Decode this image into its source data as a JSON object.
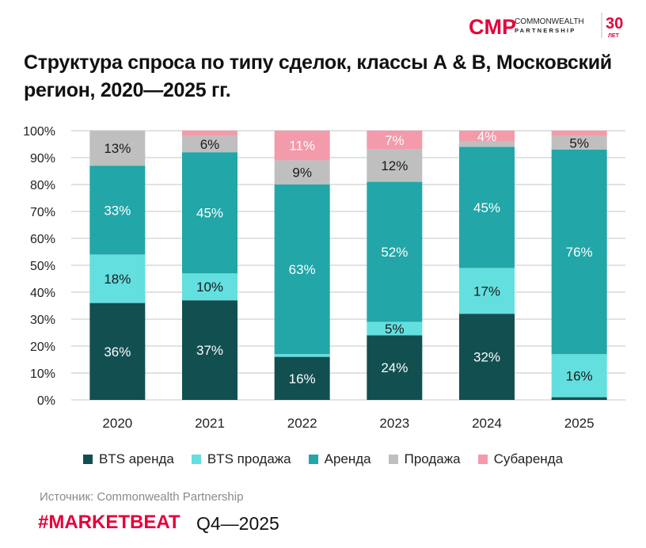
{
  "title": "Структура спроса по типу сделок, классы А & В, Московский регион, 2020—2025 гг.",
  "logo": {
    "text_main": "CMP",
    "line1": "COMMONWEALTH",
    "line2": "PARTNERSHIP",
    "years": "30",
    "years_label": "ЛЕТ",
    "color": "#e4003b"
  },
  "footer": {
    "source": "Источник: Commonwealth Partnership",
    "brand": "#MARKETBEAT",
    "period": "Q4—2025"
  },
  "chart_data": {
    "type": "bar",
    "stacked": true,
    "title": "",
    "xlabel": "",
    "ylabel": "",
    "ylim": [
      0,
      100
    ],
    "yticks": [
      "0%",
      "10%",
      "20%",
      "30%",
      "40%",
      "50%",
      "60%",
      "70%",
      "80%",
      "90%",
      "100%"
    ],
    "grid": true,
    "legend_position": "bottom",
    "categories": [
      "2020",
      "2021",
      "2022",
      "2023",
      "2024",
      "2025"
    ],
    "series": [
      {
        "name": "BTS аренда",
        "color": "#124f51",
        "label_color": "#ffffff",
        "values": [
          36,
          37,
          16,
          24,
          32,
          1
        ],
        "labels": [
          "36%",
          "37%",
          "16%",
          "24%",
          "32%",
          null
        ]
      },
      {
        "name": "BTS продажа",
        "color": "#63dfdf",
        "label_color": "#1a1a1a",
        "values": [
          18,
          10,
          1,
          5,
          17,
          16
        ],
        "labels": [
          "18%",
          "10%",
          null,
          "5%",
          "17%",
          "16%"
        ]
      },
      {
        "name": "Аренда",
        "color": "#22a6a8",
        "label_color": "#ffffff",
        "values": [
          33,
          45,
          63,
          52,
          45,
          76
        ],
        "labels": [
          "33%",
          "45%",
          "63%",
          "52%",
          "45%",
          "76%"
        ]
      },
      {
        "name": "Продажа",
        "color": "#bfbfbf",
        "label_color": "#1a1a1a",
        "values": [
          13,
          6,
          9,
          12,
          2,
          5
        ],
        "labels": [
          "13%",
          "6%",
          "9%",
          "12%",
          null,
          "5%"
        ]
      },
      {
        "name": "Субаренда",
        "color": "#f39aab",
        "label_color": "#ffffff",
        "values": [
          0,
          2,
          11,
          7,
          4,
          2
        ],
        "labels": [
          null,
          null,
          "11%",
          "7%",
          "4%",
          null
        ]
      }
    ]
  }
}
